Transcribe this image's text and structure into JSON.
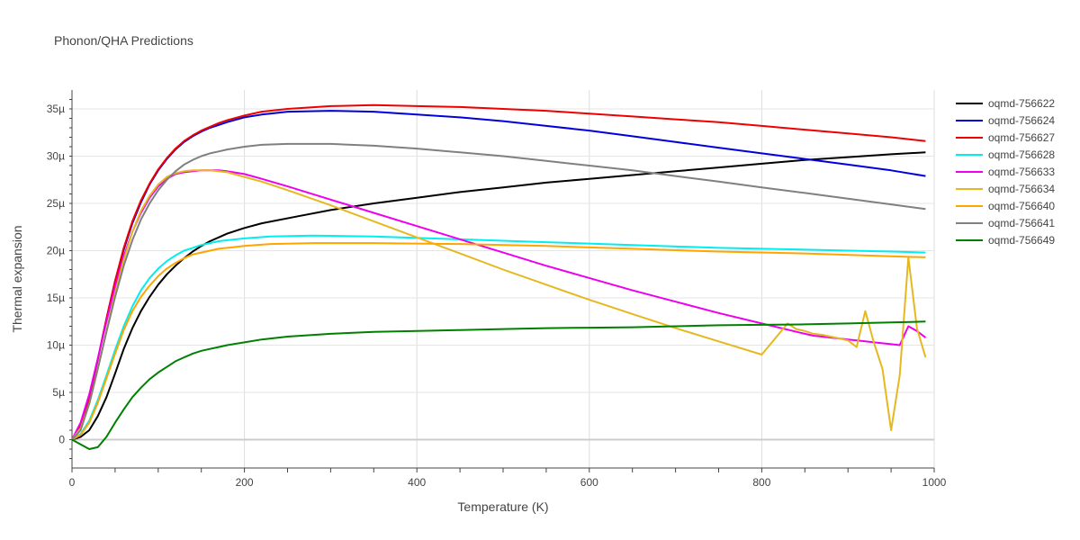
{
  "chart_data": {
    "type": "line",
    "title": "Phonon/QHA Predictions",
    "xlabel": "Temperature (K)",
    "ylabel": "Thermal expansion",
    "xlim": [
      0,
      1000
    ],
    "ylim": [
      -3,
      37
    ],
    "xticks": [
      0,
      200,
      400,
      600,
      800,
      1000
    ],
    "xtick_labels": [
      "0",
      "200",
      "400",
      "600",
      "800",
      "1000"
    ],
    "yticks": [
      0,
      5,
      10,
      15,
      20,
      25,
      30,
      35
    ],
    "ytick_labels": [
      "0",
      "5µ",
      "10µ",
      "15µ",
      "20µ",
      "25µ",
      "30µ",
      "35µ"
    ],
    "grid": true,
    "legend_position": "right",
    "series": [
      {
        "name": "oqmd-756622",
        "color": "#000000",
        "x": [
          0,
          10,
          20,
          30,
          40,
          50,
          60,
          70,
          80,
          90,
          100,
          110,
          120,
          130,
          140,
          150,
          160,
          170,
          180,
          190,
          200,
          220,
          260,
          300,
          350,
          400,
          450,
          500,
          550,
          600,
          650,
          700,
          750,
          800,
          850,
          900,
          950,
          990
        ],
        "y": [
          0,
          0.3,
          1,
          2.5,
          4.5,
          7,
          9.6,
          11.8,
          13.6,
          15.1,
          16.4,
          17.5,
          18.4,
          19.2,
          19.9,
          20.5,
          21,
          21.4,
          21.8,
          22.1,
          22.4,
          22.9,
          23.6,
          24.3,
          25,
          25.6,
          26.2,
          26.7,
          27.2,
          27.6,
          28,
          28.4,
          28.8,
          29.2,
          29.6,
          29.9,
          30.2,
          30.4
        ]
      },
      {
        "name": "oqmd-756624",
        "color": "#0000dd",
        "x": [
          0,
          10,
          20,
          30,
          40,
          50,
          60,
          70,
          80,
          90,
          100,
          110,
          120,
          130,
          140,
          150,
          160,
          170,
          180,
          200,
          220,
          250,
          300,
          350,
          400,
          450,
          500,
          550,
          600,
          650,
          700,
          750,
          800,
          850,
          900,
          950,
          990
        ],
        "y": [
          0,
          1.5,
          4.5,
          8.5,
          12.8,
          16.8,
          20.1,
          22.9,
          25.1,
          27,
          28.5,
          29.7,
          30.7,
          31.5,
          32.1,
          32.6,
          33,
          33.3,
          33.6,
          34.1,
          34.4,
          34.7,
          34.8,
          34.7,
          34.4,
          34.1,
          33.7,
          33.2,
          32.7,
          32.1,
          31.5,
          30.9,
          30.3,
          29.7,
          29.1,
          28.5,
          27.9
        ]
      },
      {
        "name": "oqmd-756627",
        "color": "#ee0000",
        "x": [
          0,
          10,
          20,
          30,
          40,
          50,
          60,
          70,
          80,
          90,
          100,
          110,
          120,
          130,
          140,
          150,
          160,
          170,
          180,
          200,
          220,
          250,
          300,
          350,
          400,
          450,
          500,
          550,
          600,
          650,
          700,
          750,
          800,
          850,
          900,
          950,
          990
        ],
        "y": [
          0,
          1.5,
          4.5,
          8.5,
          12.8,
          16.8,
          20.3,
          23.1,
          25.3,
          27.1,
          28.6,
          29.8,
          30.8,
          31.6,
          32.2,
          32.7,
          33.1,
          33.5,
          33.8,
          34.3,
          34.7,
          35,
          35.3,
          35.4,
          35.3,
          35.2,
          35,
          34.8,
          34.5,
          34.2,
          33.9,
          33.6,
          33.2,
          32.8,
          32.4,
          32,
          31.6
        ]
      },
      {
        "name": "oqmd-756628",
        "color": "#00eeee",
        "x": [
          0,
          10,
          20,
          30,
          40,
          50,
          60,
          70,
          80,
          90,
          100,
          110,
          120,
          130,
          140,
          150,
          160,
          170,
          180,
          200,
          230,
          280,
          350,
          450,
          550,
          650,
          750,
          850,
          950,
          990
        ],
        "y": [
          0,
          0.6,
          2,
          4.2,
          6.8,
          9.5,
          12,
          14.1,
          15.8,
          17.1,
          18.1,
          18.9,
          19.5,
          20,
          20.3,
          20.6,
          20.8,
          21,
          21.1,
          21.3,
          21.5,
          21.6,
          21.5,
          21.2,
          20.9,
          20.6,
          20.3,
          20.1,
          19.9,
          19.8
        ]
      },
      {
        "name": "oqmd-756633",
        "color": "#ee00ee",
        "x": [
          0,
          10,
          20,
          30,
          40,
          50,
          60,
          70,
          80,
          90,
          100,
          110,
          120,
          130,
          140,
          150,
          160,
          170,
          180,
          200,
          220,
          250,
          300,
          350,
          400,
          450,
          500,
          550,
          600,
          650,
          700,
          750,
          800,
          850,
          860,
          870,
          880,
          890,
          900,
          910,
          920,
          930,
          940,
          950,
          960,
          970,
          980,
          990
        ],
        "y": [
          0,
          1.8,
          4.8,
          8.6,
          12.5,
          16.2,
          19.4,
          22,
          24,
          25.6,
          26.8,
          27.6,
          28.1,
          28.3,
          28.4,
          28.5,
          28.5,
          28.5,
          28.4,
          28.1,
          27.6,
          26.8,
          25.4,
          24,
          22.6,
          21.2,
          19.8,
          18.4,
          17.1,
          15.8,
          14.6,
          13.4,
          12.3,
          11.2,
          11,
          10.9,
          10.8,
          10.7,
          10.6,
          10.5,
          10.4,
          10.3,
          10.2,
          10.1,
          10,
          12,
          11.5,
          10.8
        ]
      },
      {
        "name": "oqmd-756634",
        "color": "#e6b820",
        "x": [
          0,
          10,
          20,
          30,
          40,
          50,
          60,
          70,
          80,
          90,
          100,
          110,
          120,
          130,
          140,
          150,
          160,
          170,
          180,
          200,
          220,
          250,
          300,
          350,
          400,
          450,
          500,
          550,
          600,
          650,
          700,
          750,
          800,
          830,
          840,
          850,
          860,
          870,
          880,
          890,
          900,
          910,
          920,
          930,
          940,
          950,
          960,
          970,
          980,
          990
        ],
        "y": [
          0,
          1.2,
          3.8,
          7.5,
          11.5,
          15.5,
          19,
          22,
          24.2,
          25.8,
          27,
          27.8,
          28.2,
          28.4,
          28.5,
          28.5,
          28.5,
          28.4,
          28.3,
          27.8,
          27.3,
          26.4,
          24.8,
          23.1,
          21.4,
          19.7,
          18,
          16.4,
          14.8,
          13.3,
          11.8,
          10.4,
          9,
          12.3,
          11.7,
          11.5,
          11.2,
          11.1,
          10.9,
          10.7,
          10.5,
          9.8,
          13.6,
          10.3,
          7.5,
          1,
          6.8,
          19.3,
          11.8,
          8.7
        ]
      },
      {
        "name": "oqmd-756640",
        "color": "#ffa500",
        "x": [
          0,
          10,
          20,
          30,
          40,
          50,
          60,
          70,
          80,
          90,
          100,
          110,
          120,
          130,
          140,
          150,
          160,
          170,
          180,
          200,
          230,
          280,
          350,
          450,
          550,
          650,
          750,
          850,
          950,
          990
        ],
        "y": [
          0,
          0.5,
          1.8,
          3.9,
          6.5,
          9.1,
          11.6,
          13.6,
          15.1,
          16.3,
          17.3,
          18.1,
          18.7,
          19.2,
          19.6,
          19.8,
          20,
          20.2,
          20.3,
          20.5,
          20.7,
          20.8,
          20.8,
          20.7,
          20.5,
          20.2,
          19.9,
          19.7,
          19.4,
          19.3
        ]
      },
      {
        "name": "oqmd-756641",
        "color": "#808080",
        "x": [
          0,
          10,
          20,
          30,
          40,
          50,
          60,
          70,
          80,
          90,
          100,
          110,
          120,
          130,
          140,
          150,
          160,
          170,
          180,
          200,
          220,
          250,
          300,
          350,
          400,
          450,
          500,
          550,
          600,
          650,
          700,
          750,
          800,
          850,
          900,
          950,
          990
        ],
        "y": [
          0,
          1,
          3.8,
          7.5,
          11.4,
          15.1,
          18.4,
          21.1,
          23.3,
          25,
          26.4,
          27.5,
          28.4,
          29.1,
          29.6,
          30,
          30.3,
          30.5,
          30.7,
          31,
          31.2,
          31.3,
          31.3,
          31.1,
          30.8,
          30.4,
          30,
          29.5,
          29,
          28.5,
          27.9,
          27.3,
          26.7,
          26.1,
          25.5,
          24.9,
          24.4
        ]
      },
      {
        "name": "oqmd-756649",
        "color": "#008000",
        "x": [
          0,
          10,
          20,
          30,
          40,
          50,
          60,
          70,
          80,
          90,
          100,
          110,
          120,
          130,
          140,
          150,
          160,
          170,
          180,
          200,
          220,
          250,
          300,
          350,
          400,
          450,
          500,
          550,
          600,
          650,
          700,
          750,
          800,
          850,
          900,
          950,
          990
        ],
        "y": [
          0,
          -0.5,
          -1,
          -0.8,
          0.3,
          1.8,
          3.2,
          4.5,
          5.5,
          6.4,
          7.1,
          7.7,
          8.3,
          8.7,
          9.1,
          9.4,
          9.6,
          9.8,
          10,
          10.3,
          10.6,
          10.9,
          11.2,
          11.4,
          11.5,
          11.6,
          11.7,
          11.8,
          11.85,
          11.9,
          12,
          12.1,
          12.15,
          12.2,
          12.3,
          12.4,
          12.5
        ]
      }
    ]
  }
}
